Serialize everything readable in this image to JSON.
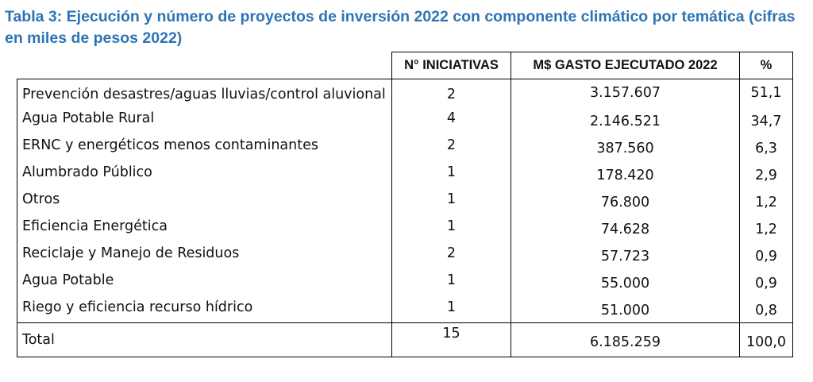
{
  "title": "Tabla 3: Ejecución y número de proyectos de inversión 2022 con componente climático por temática (cifras en miles de pesos 2022)",
  "columns": {
    "tematica": "",
    "iniciativas": "N° INICIATIVAS",
    "gasto": "M$ GASTO EJECUTADO 2022",
    "pct": "%"
  },
  "rows": [
    {
      "tematica": "Prevención desastres/aguas lluvias/control aluvional",
      "iniciativas": "2",
      "gasto": "3.157.607",
      "pct": "51,1"
    },
    {
      "tematica": "Agua Potable Rural",
      "iniciativas": "4",
      "gasto": "2.146.521",
      "pct": "34,7"
    },
    {
      "tematica": "ERNC y energéticos menos contaminantes",
      "iniciativas": "2",
      "gasto": "387.560",
      "pct": "6,3"
    },
    {
      "tematica": "Alumbrado Público",
      "iniciativas": "1",
      "gasto": "178.420",
      "pct": "2,9"
    },
    {
      "tematica": "Otros",
      "iniciativas": "1",
      "gasto": "76.800",
      "pct": "1,2"
    },
    {
      "tematica": "Eficiencia Energética",
      "iniciativas": "1",
      "gasto": "74.628",
      "pct": "1,2"
    },
    {
      "tematica": "Reciclaje y Manejo de Residuos",
      "iniciativas": "2",
      "gasto": "57.723",
      "pct": "0,9"
    },
    {
      "tematica": "Agua Potable",
      "iniciativas": "1",
      "gasto": "55.000",
      "pct": "0,9"
    },
    {
      "tematica": "Riego y eficiencia recurso hídrico",
      "iniciativas": "1",
      "gasto": "51.000",
      "pct": "0,8"
    }
  ],
  "total": {
    "tematica": "Total",
    "iniciativas": "15",
    "gasto": "6.185.259",
    "pct": "100,0"
  }
}
